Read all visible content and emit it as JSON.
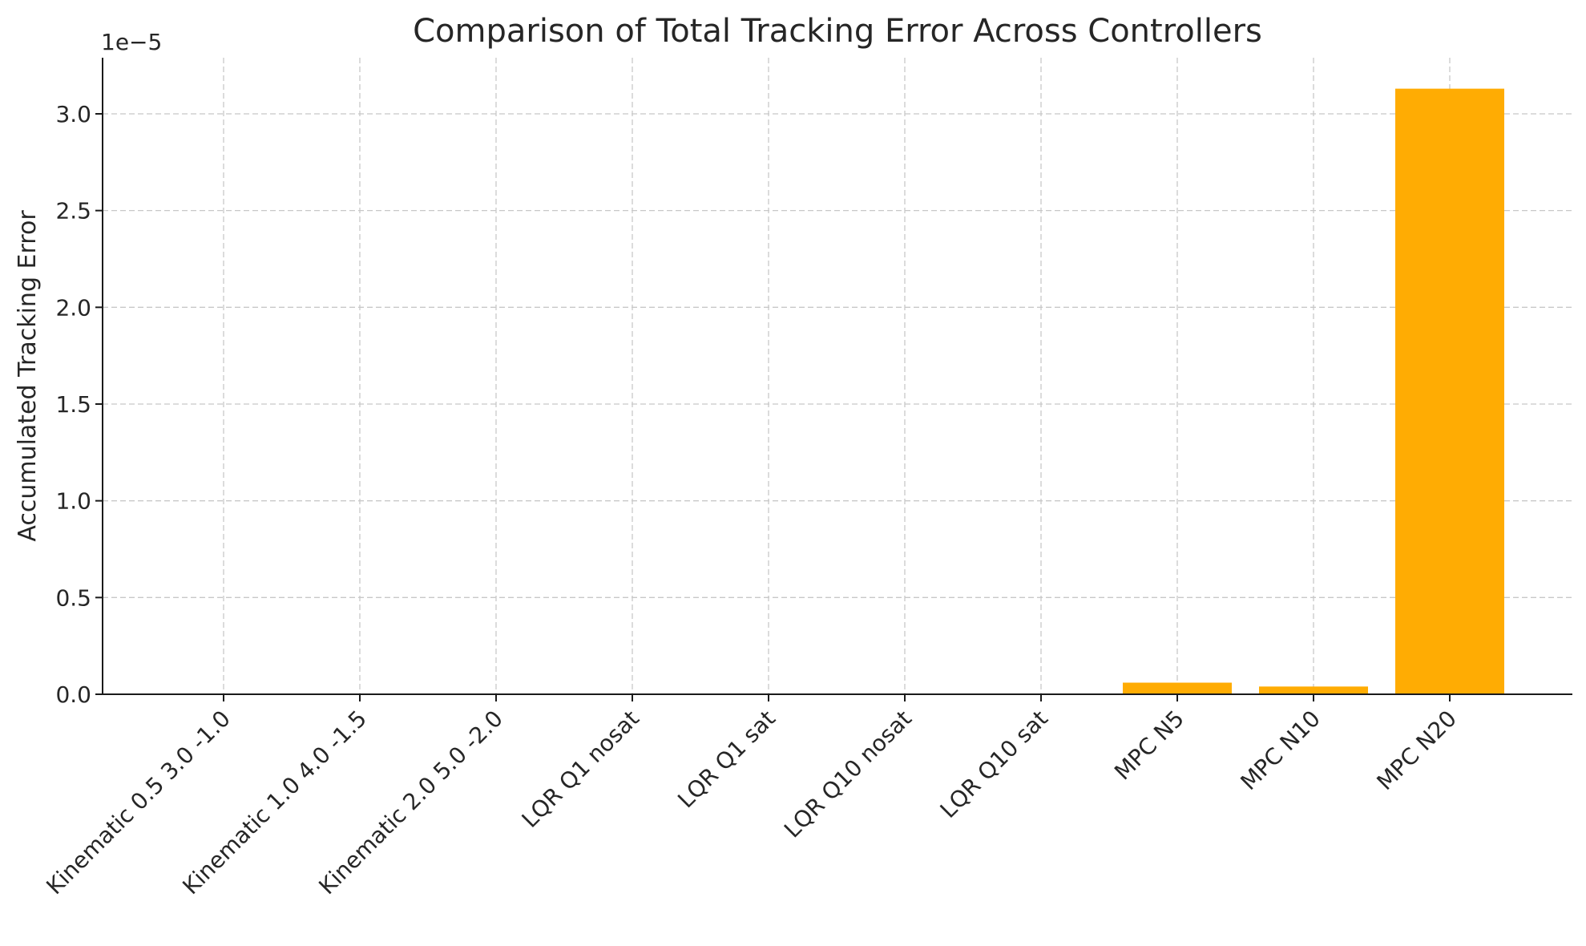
{
  "chart_data": {
    "type": "bar",
    "title": "Comparison of Total Tracking Error Across Controllers",
    "xlabel": "",
    "ylabel": "Accumulated Tracking Error",
    "y_offset_label": "1e−5",
    "categories": [
      "Kinematic 0.5 3.0 -1.0",
      "Kinematic 1.0 4.0 -1.5",
      "Kinematic 2.0 5.0 -2.0",
      "LQR Q1 nosat",
      "LQR Q1 sat",
      "LQR Q10 nosat",
      "LQR Q10 sat",
      "MPC N5",
      "MPC N10",
      "MPC N20"
    ],
    "values": [
      0,
      0,
      0,
      0,
      0,
      0,
      0,
      0.06,
      0.04,
      3.13
    ],
    "value_scale": "1e-5",
    "yticks": [
      "0.0",
      "0.5",
      "1.0",
      "1.5",
      "2.0",
      "2.5",
      "3.0"
    ],
    "ylim": [
      0,
      3.29
    ],
    "grid": true,
    "bar_color": "#ffac03"
  }
}
